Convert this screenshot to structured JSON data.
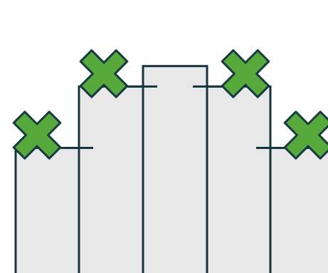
{
  "columns": [
    {
      "name": "column-1",
      "level": 0.55,
      "marked": true
    },
    {
      "name": "column-2",
      "level": 0.82,
      "marked": true
    },
    {
      "name": "column-3",
      "level": 0.91,
      "marked": false
    },
    {
      "name": "column-4",
      "level": 0.82,
      "marked": true
    },
    {
      "name": "column-5",
      "level": 0.55,
      "marked": true
    }
  ],
  "colors": {
    "column_fill": "#e8e8e9",
    "column_stroke": "#14343f",
    "cross_fill": "#56a93a",
    "cross_stroke": "#173a43",
    "background": "#ffffff"
  },
  "icons": {
    "marker": "x-cross-icon"
  }
}
